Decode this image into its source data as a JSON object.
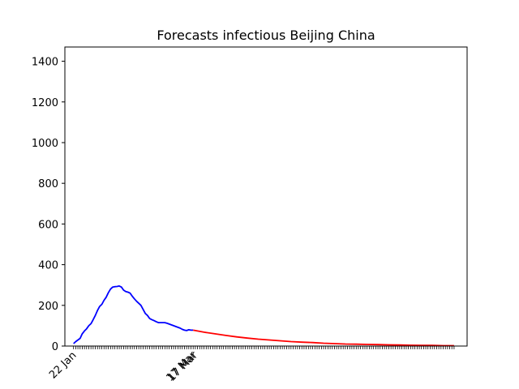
{
  "chart_data": {
    "type": "line",
    "title": "Forecasts infectious Beijing China",
    "xlabel": "",
    "ylabel": "",
    "ylim": [
      0,
      1470
    ],
    "yticks": [
      0,
      200,
      400,
      600,
      800,
      1000,
      1200,
      1400
    ],
    "xticks_labeled": [
      "22 Jan",
      "17 Mar",
      "17 Mar"
    ],
    "series": [
      {
        "role": "observed",
        "color": "#0000ff",
        "x": [
          0,
          1,
          2,
          3,
          4,
          5,
          6,
          7,
          8,
          9,
          10,
          11,
          12,
          13,
          14,
          15,
          16,
          17,
          18,
          19,
          20,
          21,
          22,
          23,
          24,
          25,
          26,
          27,
          28,
          29,
          30,
          31,
          32,
          33,
          34,
          35,
          36,
          37,
          38,
          39,
          40,
          41,
          42,
          43,
          44,
          45,
          46,
          47,
          48,
          49,
          50,
          51,
          52,
          53,
          54,
          55
        ],
        "values": [
          12,
          22,
          30,
          38,
          60,
          74,
          85,
          100,
          110,
          130,
          150,
          175,
          195,
          205,
          225,
          240,
          262,
          280,
          290,
          292,
          293,
          295,
          290,
          275,
          268,
          265,
          260,
          245,
          232,
          220,
          210,
          200,
          180,
          160,
          150,
          135,
          130,
          125,
          120,
          115,
          115,
          115,
          115,
          112,
          108,
          104,
          100,
          96,
          92,
          88,
          82,
          78,
          76,
          80,
          78,
          78
        ]
      },
      {
        "role": "forecast",
        "color": "#ff0000",
        "x": [
          55,
          60,
          65,
          70,
          75,
          80,
          85,
          90,
          95,
          100,
          105,
          110,
          115,
          120,
          125,
          130,
          135,
          140,
          145,
          150,
          155,
          160,
          165,
          170,
          175
        ],
        "values": [
          78,
          68,
          60,
          52,
          45,
          39,
          34,
          30,
          26,
          22,
          19,
          17,
          14,
          12,
          10,
          9,
          8,
          7,
          6,
          5,
          4,
          3,
          3,
          2,
          2
        ]
      }
    ]
  }
}
